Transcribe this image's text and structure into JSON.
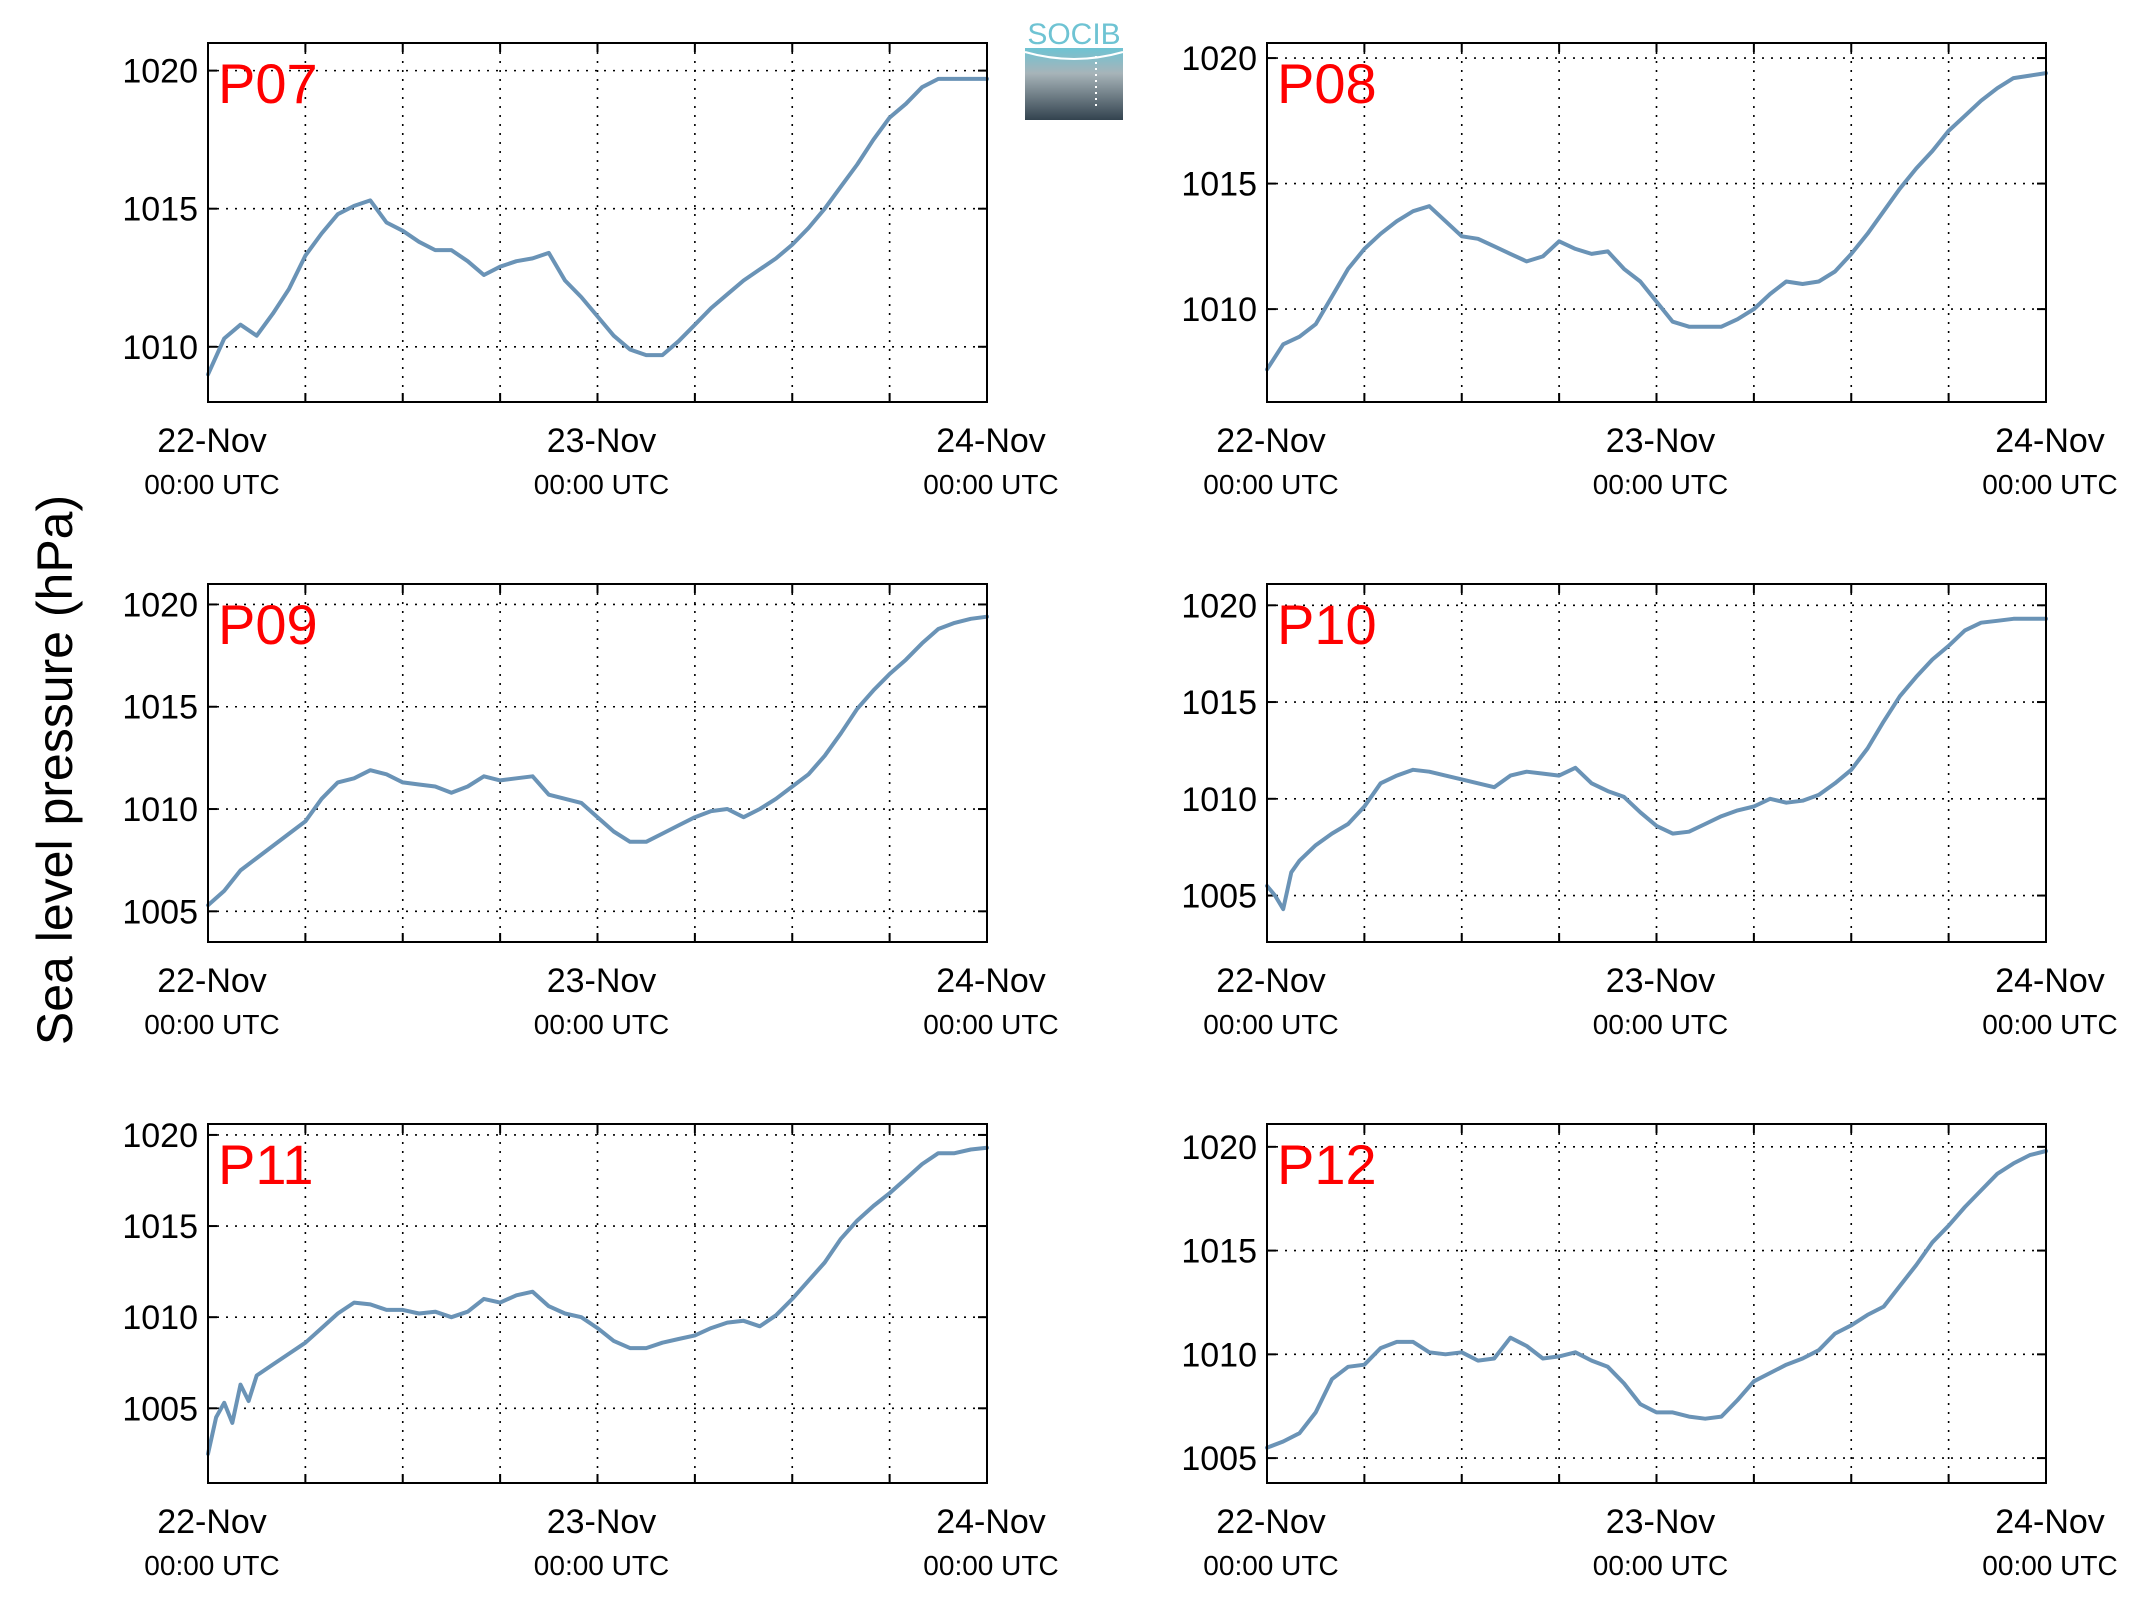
{
  "figure": {
    "ylabel": "Sea level pressure (hPa)",
    "logo_text": "SOCIB"
  },
  "colors": {
    "series": "#6a93b6",
    "panel_label": "#ff0000",
    "axis": "#000000",
    "logo_top": "#6ec3d3",
    "logo_bottom": "#33434f"
  },
  "chart_data": [
    {
      "type": "line",
      "panel_label": "P07",
      "xlabel": "",
      "ylabel": "",
      "x_ticks": [
        {
          "line1": "22-Nov",
          "line2": "00:00 UTC"
        },
        {
          "line1": "23-Nov",
          "line2": "00:00 UTC"
        },
        {
          "line1": "24-Nov",
          "line2": "00:00 UTC"
        }
      ],
      "xlim_hours": [
        0,
        48
      ],
      "x_grid_every_hours": 6,
      "ylim": [
        1008,
        1021
      ],
      "y_ticks": [
        1010,
        1015,
        1020
      ],
      "grid": true,
      "series": [
        {
          "x_hours": [
            0,
            1,
            2,
            3,
            4,
            5,
            6,
            7,
            8,
            9,
            10,
            11,
            12,
            13,
            14,
            15,
            16,
            17,
            18,
            19,
            20,
            21,
            22,
            23,
            24,
            25,
            26,
            27,
            28,
            29,
            30,
            31,
            32,
            33,
            34,
            35,
            36,
            37,
            38,
            39,
            40,
            41,
            42,
            43,
            44,
            45,
            46,
            47,
            48
          ],
          "values": [
            1009.0,
            1010.3,
            1010.8,
            1010.4,
            1011.2,
            1012.1,
            1013.3,
            1014.1,
            1014.8,
            1015.1,
            1015.3,
            1014.5,
            1014.2,
            1013.8,
            1013.5,
            1013.5,
            1013.1,
            1012.6,
            1012.9,
            1013.1,
            1013.2,
            1013.4,
            1012.4,
            1011.8,
            1011.1,
            1010.4,
            1009.9,
            1009.7,
            1009.7,
            1010.2,
            1010.8,
            1011.4,
            1011.9,
            1012.4,
            1012.8,
            1013.2,
            1013.7,
            1014.3,
            1015.0,
            1015.8,
            1016.6,
            1017.5,
            1018.3,
            1018.8,
            1019.4,
            1019.7,
            1019.7,
            1019.7,
            1019.7
          ]
        }
      ]
    },
    {
      "type": "line",
      "panel_label": "P08",
      "xlabel": "",
      "ylabel": "",
      "x_ticks": [
        {
          "line1": "22-Nov",
          "line2": "00:00 UTC"
        },
        {
          "line1": "23-Nov",
          "line2": "00:00 UTC"
        },
        {
          "line1": "24-Nov",
          "line2": "00:00 UTC"
        }
      ],
      "xlim_hours": [
        0,
        48
      ],
      "x_grid_every_hours": 6,
      "ylim": [
        1006.3,
        1020.6
      ],
      "y_ticks": [
        1010,
        1015,
        1020
      ],
      "grid": true,
      "series": [
        {
          "x_hours": [
            0,
            1,
            2,
            3,
            4,
            5,
            6,
            7,
            8,
            9,
            10,
            11,
            12,
            13,
            14,
            15,
            16,
            17,
            18,
            19,
            20,
            21,
            22,
            23,
            24,
            25,
            26,
            27,
            28,
            29,
            30,
            31,
            32,
            33,
            34,
            35,
            36,
            37,
            38,
            39,
            40,
            41,
            42,
            43,
            44,
            45,
            46,
            47,
            48
          ],
          "values": [
            1007.6,
            1008.6,
            1008.9,
            1009.4,
            1010.5,
            1011.6,
            1012.4,
            1013.0,
            1013.5,
            1013.9,
            1014.1,
            1013.5,
            1012.9,
            1012.8,
            1012.5,
            1012.2,
            1011.9,
            1012.1,
            1012.7,
            1012.4,
            1012.2,
            1012.3,
            1011.6,
            1011.1,
            1010.3,
            1009.5,
            1009.3,
            1009.3,
            1009.3,
            1009.6,
            1010.0,
            1010.6,
            1011.1,
            1011.0,
            1011.1,
            1011.5,
            1012.2,
            1013.0,
            1013.9,
            1014.8,
            1015.6,
            1016.3,
            1017.1,
            1017.7,
            1018.3,
            1018.8,
            1019.2,
            1019.3,
            1019.4
          ]
        }
      ]
    },
    {
      "type": "line",
      "panel_label": "P09",
      "xlabel": "",
      "ylabel": "",
      "x_ticks": [
        {
          "line1": "22-Nov",
          "line2": "00:00 UTC"
        },
        {
          "line1": "23-Nov",
          "line2": "00:00 UTC"
        },
        {
          "line1": "24-Nov",
          "line2": "00:00 UTC"
        }
      ],
      "xlim_hours": [
        0,
        48
      ],
      "x_grid_every_hours": 6,
      "ylim": [
        1003.5,
        1021.0
      ],
      "y_ticks": [
        1005,
        1010,
        1015,
        1020
      ],
      "grid": true,
      "series": [
        {
          "x_hours": [
            0,
            1,
            2,
            3,
            4,
            5,
            6,
            7,
            8,
            9,
            10,
            11,
            12,
            13,
            14,
            15,
            16,
            17,
            18,
            19,
            20,
            21,
            22,
            23,
            24,
            25,
            26,
            27,
            28,
            29,
            30,
            31,
            32,
            33,
            34,
            35,
            36,
            37,
            38,
            39,
            40,
            41,
            42,
            43,
            44,
            45,
            46,
            47,
            48
          ],
          "values": [
            1005.3,
            1006.0,
            1007.0,
            1007.6,
            1008.2,
            1008.8,
            1009.4,
            1010.5,
            1011.3,
            1011.5,
            1011.9,
            1011.7,
            1011.3,
            1011.2,
            1011.1,
            1010.8,
            1011.1,
            1011.6,
            1011.4,
            1011.5,
            1011.6,
            1010.7,
            1010.5,
            1010.3,
            1009.6,
            1008.9,
            1008.4,
            1008.4,
            1008.8,
            1009.2,
            1009.6,
            1009.9,
            1010.0,
            1009.6,
            1010.0,
            1010.5,
            1011.1,
            1011.7,
            1012.6,
            1013.7,
            1014.9,
            1015.8,
            1016.6,
            1017.3,
            1018.1,
            1018.8,
            1019.1,
            1019.3,
            1019.4
          ]
        }
      ]
    },
    {
      "type": "line",
      "panel_label": "P10",
      "xlabel": "",
      "ylabel": "",
      "x_ticks": [
        {
          "line1": "22-Nov",
          "line2": "00:00 UTC"
        },
        {
          "line1": "23-Nov",
          "line2": "00:00 UTC"
        },
        {
          "line1": "24-Nov",
          "line2": "00:00 UTC"
        }
      ],
      "xlim_hours": [
        0,
        48
      ],
      "x_grid_every_hours": 6,
      "ylim": [
        1002.6,
        1021.1
      ],
      "y_ticks": [
        1005,
        1010,
        1015,
        1020
      ],
      "grid": true,
      "series": [
        {
          "x_hours": [
            0,
            0.5,
            1,
            1.5,
            2,
            3,
            4,
            5,
            6,
            7,
            8,
            9,
            10,
            11,
            12,
            13,
            14,
            15,
            16,
            17,
            18,
            19,
            20,
            21,
            22,
            23,
            24,
            25,
            26,
            27,
            28,
            29,
            30,
            31,
            32,
            33,
            34,
            35,
            36,
            37,
            38,
            39,
            40,
            41,
            42,
            43,
            44,
            45,
            46,
            47,
            48
          ],
          "values": [
            1005.5,
            1005.0,
            1004.3,
            1006.2,
            1006.8,
            1007.6,
            1008.2,
            1008.7,
            1009.6,
            1010.8,
            1011.2,
            1011.5,
            1011.4,
            1011.2,
            1011.0,
            1010.8,
            1010.6,
            1011.2,
            1011.4,
            1011.3,
            1011.2,
            1011.6,
            1010.8,
            1010.4,
            1010.1,
            1009.3,
            1008.6,
            1008.2,
            1008.3,
            1008.7,
            1009.1,
            1009.4,
            1009.6,
            1010.0,
            1009.8,
            1009.9,
            1010.2,
            1010.8,
            1011.5,
            1012.6,
            1014.0,
            1015.3,
            1016.3,
            1017.2,
            1017.9,
            1018.7,
            1019.1,
            1019.2,
            1019.3,
            1019.3,
            1019.3
          ]
        }
      ]
    },
    {
      "type": "line",
      "panel_label": "P11",
      "xlabel": "",
      "ylabel": "",
      "x_ticks": [
        {
          "line1": "22-Nov",
          "line2": "00:00 UTC"
        },
        {
          "line1": "23-Nov",
          "line2": "00:00 UTC"
        },
        {
          "line1": "24-Nov",
          "line2": "00:00 UTC"
        }
      ],
      "xlim_hours": [
        0,
        48
      ],
      "x_grid_every_hours": 6,
      "ylim": [
        1000.9,
        1020.6
      ],
      "y_ticks": [
        1005,
        1010,
        1015,
        1020
      ],
      "grid": true,
      "series": [
        {
          "x_hours": [
            0,
            0.5,
            1,
            1.5,
            2,
            2.5,
            3,
            4,
            5,
            6,
            7,
            8,
            9,
            10,
            11,
            12,
            13,
            14,
            15,
            16,
            17,
            18,
            19,
            20,
            21,
            22,
            23,
            24,
            25,
            26,
            27,
            28,
            29,
            30,
            31,
            32,
            33,
            34,
            35,
            36,
            37,
            38,
            39,
            40,
            41,
            42,
            43,
            44,
            45,
            46,
            47,
            48
          ],
          "values": [
            1002.5,
            1004.5,
            1005.3,
            1004.2,
            1006.3,
            1005.4,
            1006.8,
            1007.4,
            1008.0,
            1008.6,
            1009.4,
            1010.2,
            1010.8,
            1010.7,
            1010.4,
            1010.4,
            1010.2,
            1010.3,
            1010.0,
            1010.3,
            1011.0,
            1010.8,
            1011.2,
            1011.4,
            1010.6,
            1010.2,
            1010.0,
            1009.4,
            1008.7,
            1008.3,
            1008.3,
            1008.6,
            1008.8,
            1009.0,
            1009.4,
            1009.7,
            1009.8,
            1009.5,
            1010.1,
            1011.0,
            1012.0,
            1013.0,
            1014.3,
            1015.3,
            1016.1,
            1016.8,
            1017.6,
            1018.4,
            1019.0,
            1019.0,
            1019.2,
            1019.3
          ]
        }
      ]
    },
    {
      "type": "line",
      "panel_label": "P12",
      "xlabel": "",
      "ylabel": "",
      "x_ticks": [
        {
          "line1": "22-Nov",
          "line2": "00:00 UTC"
        },
        {
          "line1": "23-Nov",
          "line2": "00:00 UTC"
        },
        {
          "line1": "24-Nov",
          "line2": "00:00 UTC"
        }
      ],
      "xlim_hours": [
        0,
        48
      ],
      "x_grid_every_hours": 6,
      "ylim": [
        1003.8,
        1021.1
      ],
      "y_ticks": [
        1005,
        1010,
        1015,
        1020
      ],
      "grid": true,
      "series": [
        {
          "x_hours": [
            0,
            1,
            2,
            3,
            4,
            5,
            6,
            7,
            8,
            9,
            10,
            11,
            12,
            13,
            14,
            15,
            16,
            17,
            18,
            19,
            20,
            21,
            22,
            23,
            24,
            25,
            26,
            27,
            28,
            29,
            30,
            31,
            32,
            33,
            34,
            35,
            36,
            37,
            38,
            39,
            40,
            41,
            42,
            43,
            44,
            45,
            46,
            47,
            48
          ],
          "values": [
            1005.5,
            1005.8,
            1006.2,
            1007.2,
            1008.8,
            1009.4,
            1009.5,
            1010.3,
            1010.6,
            1010.6,
            1010.1,
            1010.0,
            1010.1,
            1009.7,
            1009.8,
            1010.8,
            1010.4,
            1009.8,
            1009.9,
            1010.1,
            1009.7,
            1009.4,
            1008.6,
            1007.6,
            1007.2,
            1007.2,
            1007.0,
            1006.9,
            1007.0,
            1007.8,
            1008.7,
            1009.1,
            1009.5,
            1009.8,
            1010.2,
            1011.0,
            1011.4,
            1011.9,
            1012.3,
            1013.3,
            1014.3,
            1015.4,
            1016.2,
            1017.1,
            1017.9,
            1018.7,
            1019.2,
            1019.6,
            1019.8
          ]
        }
      ]
    }
  ]
}
